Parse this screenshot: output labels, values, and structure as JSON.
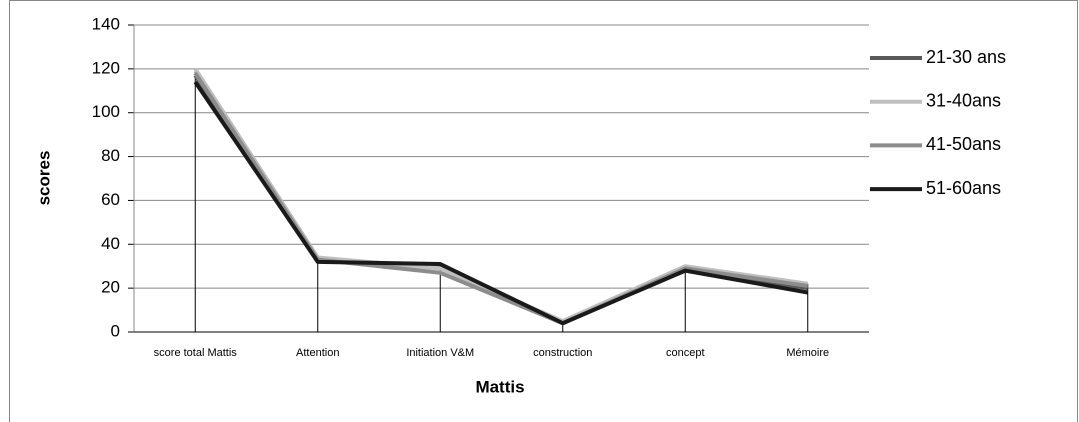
{
  "chart_data": {
    "type": "line",
    "categories": [
      "score total Mattis",
      "Attention",
      "Initiation V&M",
      "construction",
      "concept",
      "Mémoire"
    ],
    "series": [
      {
        "name": "21-30 ans",
        "color": "#595959",
        "values": [
          117,
          33,
          30,
          4,
          29,
          20
        ]
      },
      {
        "name": "31-40ans",
        "color": "#bfbfbf",
        "values": [
          120,
          34,
          29,
          5,
          30,
          22
        ]
      },
      {
        "name": "41-50ans",
        "color": "#8c8c8c",
        "values": [
          118,
          33,
          27,
          4,
          29,
          21
        ]
      },
      {
        "name": "51-60ans",
        "color": "#1a1a1a",
        "values": [
          114,
          32,
          31,
          4,
          28,
          18
        ]
      }
    ],
    "xlabel": "Mattis",
    "ylabel": "scores",
    "ylim": [
      0,
      140
    ],
    "yticks": [
      0,
      20,
      40,
      60,
      80,
      100,
      120,
      140
    ],
    "grid": true,
    "drop_lines": true,
    "legend": "right"
  }
}
